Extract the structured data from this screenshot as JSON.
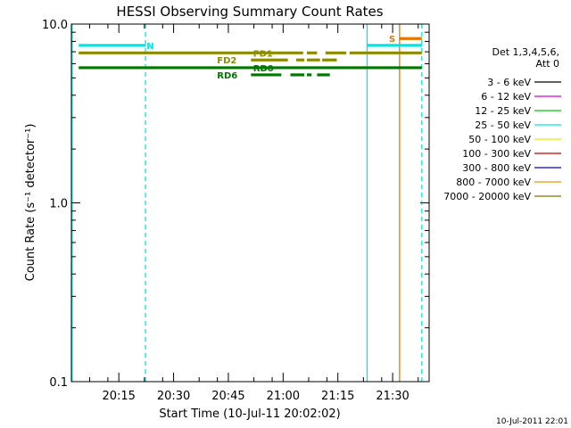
{
  "chart_data": {
    "type": "line",
    "title": "HESSI Observing Summary Count Rates",
    "xlabel": "Start Time (10-Jul-11 20:02:02)",
    "ylabel": "Count Rate (s⁻¹ detector⁻¹)",
    "y_scale": "log",
    "ylim": [
      0.1,
      10.0
    ],
    "xlim": [
      "20:02:02",
      "21:40:00"
    ],
    "y_ticks": [
      {
        "label": "10.0",
        "value": 10.0
      },
      {
        "label": "1.0",
        "value": 1.0
      },
      {
        "label": "0.1",
        "value": 0.1
      }
    ],
    "x_ticks": [
      {
        "label": "20:15",
        "minutes": 15
      },
      {
        "label": "20:30",
        "minutes": 30
      },
      {
        "label": "20:45",
        "minutes": 45
      },
      {
        "label": "21:00",
        "minutes": 60
      },
      {
        "label": "21:15",
        "minutes": 75
      },
      {
        "label": "21:30",
        "minutes": 90
      }
    ],
    "legend": {
      "title_lines": [
        "Det 1,3,4,5,6,",
        "Att 0"
      ],
      "placement": "right",
      "entries": [
        {
          "label": "3 - 6 keV",
          "color": "#000000"
        },
        {
          "label": "6 - 12 keV",
          "color": "#d400d4"
        },
        {
          "label": "12 - 25 keV",
          "color": "#00c800"
        },
        {
          "label": "25 - 50 keV",
          "color": "#00e6e6"
        },
        {
          "label": "50 - 100 keV",
          "color": "#e6e600"
        },
        {
          "label": "100 - 300 keV",
          "color": "#c80000"
        },
        {
          "label": "300 - 800 keV",
          "color": "#0000c8"
        },
        {
          "label": "800 - 7000 keV",
          "color": "#e69600"
        },
        {
          "label": "7000 - 20000 keV",
          "color": "#8c6e00"
        }
      ]
    },
    "flag_bars": [
      {
        "label": "N",
        "color": "#00e6e6",
        "value": 7.6,
        "segments": [
          [
            2.0,
            20.3
          ],
          [
            81.0,
            96.0
          ]
        ]
      },
      {
        "label": "S",
        "color": "#e67800",
        "value": 8.3,
        "segments": [
          [
            89.9,
            96.0
          ]
        ]
      },
      {
        "label": "FD1",
        "color": "#8c8c00",
        "value": 6.9,
        "segments": [
          [
            2.0,
            63.5
          ],
          [
            64.5,
            67.3
          ],
          [
            69.6,
            75.3
          ],
          [
            76.2,
            96.0
          ]
        ]
      },
      {
        "label": "FD2",
        "color": "#8c8c00",
        "value": 6.3,
        "segments": [
          [
            49.2,
            59.3
          ],
          [
            61.6,
            63.8
          ],
          [
            64.5,
            68.1
          ],
          [
            68.7,
            72.7
          ]
        ]
      },
      {
        "label": "RD0",
        "color": "#007800",
        "value": 5.7,
        "segments": [
          [
            2.0,
            96.0
          ]
        ]
      },
      {
        "label": "RD6",
        "color": "#007800",
        "value": 5.2,
        "segments": [
          [
            49.2,
            57.5
          ],
          [
            60.0,
            63.8
          ],
          [
            64.5,
            65.8
          ],
          [
            67.3,
            70.8
          ]
        ]
      }
    ],
    "flag_labels": [
      {
        "label": "N",
        "color": "#00e6e6",
        "minutes": 20.6,
        "value": 7.6
      },
      {
        "label": "S",
        "color": "#e67800",
        "minutes": 87.0,
        "value": 8.3
      },
      {
        "label": "FD1",
        "color": "#8c8c00",
        "minutes": 49.8,
        "value": 6.9
      },
      {
        "label": "FD2",
        "color": "#8c8c00",
        "minutes": 39.9,
        "value": 6.3
      },
      {
        "label": "RD0",
        "color": "#007800",
        "minutes": 49.8,
        "value": 5.7
      },
      {
        "label": "RD6",
        "color": "#007800",
        "minutes": 39.9,
        "value": 5.2
      }
    ],
    "vertical_markers": [
      {
        "color": "#00e6e6",
        "style": "solid",
        "minutes": 0.2
      },
      {
        "color": "#00e6e6",
        "style": "dashed",
        "minutes": 20.3
      },
      {
        "color": "#00e6e6",
        "style": "solid",
        "minutes": 81.0
      },
      {
        "color": "#e67800",
        "style": "solid",
        "minutes": 89.9
      },
      {
        "color": "#00e6e6",
        "style": "dashed",
        "minutes": 96.0
      }
    ],
    "footer_timestamp": "10-Jul-2011 22:01"
  }
}
